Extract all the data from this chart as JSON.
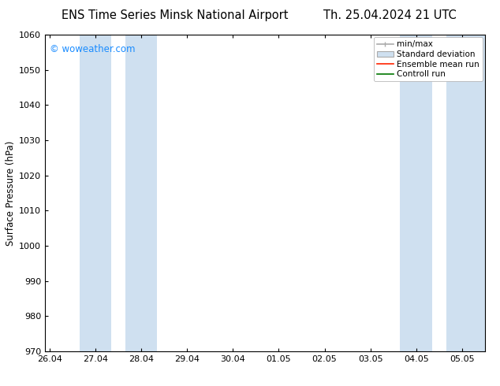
{
  "title_left": "ENS Time Series Minsk National Airport",
  "title_right": "Th. 25.04.2024 21 UTC",
  "ylabel": "Surface Pressure (hPa)",
  "ylim": [
    970,
    1060
  ],
  "yticks": [
    970,
    980,
    990,
    1000,
    1010,
    1020,
    1030,
    1040,
    1050,
    1060
  ],
  "xtick_labels": [
    "26.04",
    "27.04",
    "28.04",
    "29.04",
    "30.04",
    "01.05",
    "02.05",
    "03.05",
    "04.05",
    "05.05"
  ],
  "watermark": "© woweather.com",
  "watermark_color": "#1a8cff",
  "bg_color": "#ffffff",
  "plot_bg_color": "#ffffff",
  "band_color": "#cfe0f0",
  "title_fontsize": 10.5,
  "axis_fontsize": 8.5,
  "tick_fontsize": 8,
  "legend_fontsize": 7.5
}
